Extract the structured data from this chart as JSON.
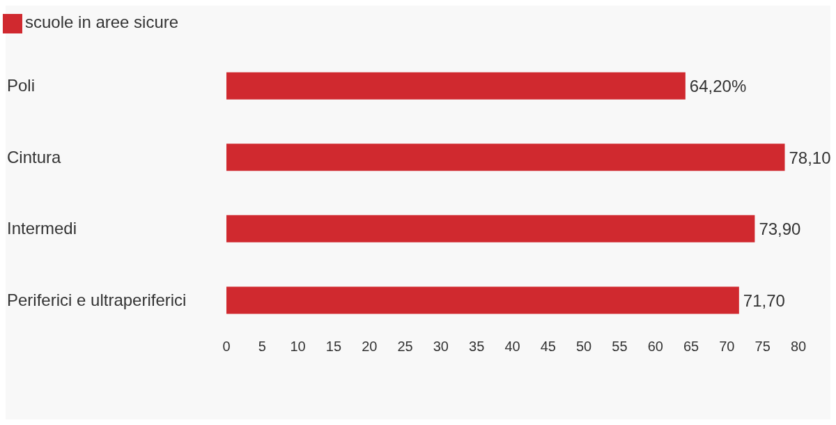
{
  "chart_data": {
    "type": "bar",
    "orientation": "horizontal",
    "categories": [
      "Poli",
      "Cintura",
      "Intermedi",
      "Periferici e ultraperiferici"
    ],
    "series": [
      {
        "name": "scuole in aree sicure",
        "color": "#d0292f",
        "values": [
          64.2,
          78.1,
          73.9,
          71.7
        ],
        "value_labels": [
          "64,20%",
          "78,10",
          "73,90",
          "71,70"
        ]
      }
    ],
    "xlim": [
      0,
      80
    ],
    "xticks": [
      0,
      5,
      10,
      15,
      20,
      25,
      30,
      35,
      40,
      45,
      50,
      55,
      60,
      65,
      70,
      75,
      80
    ],
    "legend": "top left"
  }
}
